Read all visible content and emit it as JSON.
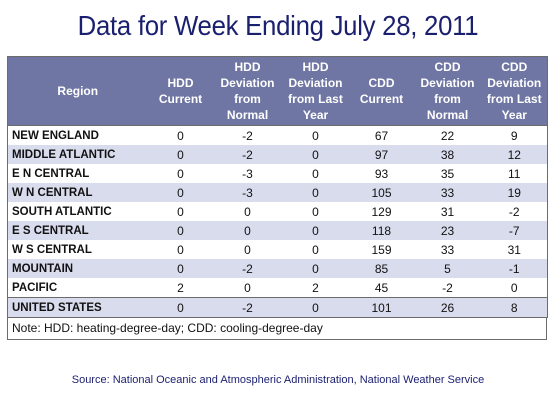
{
  "title": "Data for Week Ending July 28, 2011",
  "columns": [
    "Region",
    "HDD Current",
    "HDD Deviation from Normal",
    "HDD Deviation from Last Year",
    "CDD Current",
    "CDD Deviation from Normal",
    "CDD Deviation from Last Year"
  ],
  "rows": [
    [
      "NEW ENGLAND",
      "0",
      "-2",
      "0",
      "67",
      "22",
      "9"
    ],
    [
      "MIDDLE ATLANTIC",
      "0",
      "-2",
      "0",
      "97",
      "38",
      "12"
    ],
    [
      "E N CENTRAL",
      "0",
      "-3",
      "0",
      "93",
      "35",
      "11"
    ],
    [
      "W N CENTRAL",
      "0",
      "-3",
      "0",
      "105",
      "33",
      "19"
    ],
    [
      "SOUTH ATLANTIC",
      "0",
      "0",
      "0",
      "129",
      "31",
      "-2"
    ],
    [
      "E S CENTRAL",
      "0",
      "0",
      "0",
      "118",
      "23",
      "-7"
    ],
    [
      "W S CENTRAL",
      "0",
      "0",
      "0",
      "159",
      "33",
      "31"
    ],
    [
      "MOUNTAIN",
      "0",
      "-2",
      "0",
      "85",
      "5",
      "-1"
    ],
    [
      "PACIFIC",
      "2",
      "0",
      "2",
      "45",
      "-2",
      "0"
    ],
    [
      "UNITED STATES",
      "0",
      "-2",
      "0",
      "101",
      "26",
      "8"
    ]
  ],
  "note": "Note: HDD: heating-degree-day; CDD: cooling-degree-day",
  "source": "Source:  National Oceanic and Atmospheric Administration, National Weather Service",
  "colors": {
    "header_bg": "#6f76a3",
    "alt_row_bg": "#d9dced",
    "title_color": "#1a1f6e"
  }
}
